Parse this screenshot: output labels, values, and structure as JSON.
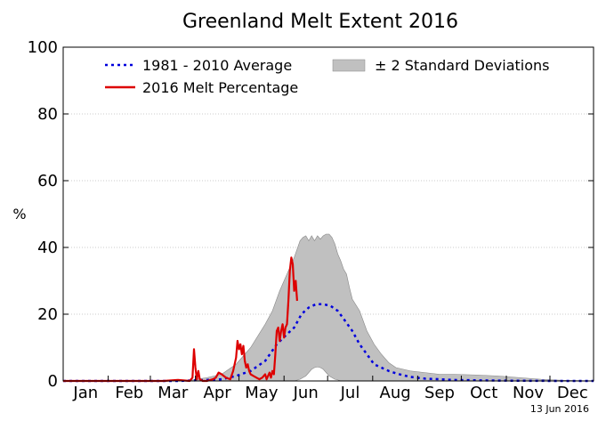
{
  "chart_data": {
    "type": "line",
    "title": "Greenland Melt Extent 2016",
    "ylabel": "%",
    "xlabel": "",
    "ylim": [
      0,
      100
    ],
    "xlim_days": [
      1,
      366
    ],
    "y_ticks": [
      0,
      20,
      40,
      60,
      80,
      100
    ],
    "y_tick_labels": [
      "0",
      "20",
      "40",
      "60",
      "80",
      "100"
    ],
    "month_labels": [
      "Jan",
      "Feb",
      "Mar",
      "Apr",
      "May",
      "Jun",
      "Jul",
      "Aug",
      "Sep",
      "Oct",
      "Nov",
      "Dec"
    ],
    "grid": "horizontal-dotted",
    "legend_placement": "top",
    "date_stamp": "13 Jun 2016",
    "legend": {
      "average_label": "1981 - 2010 Average",
      "current_label": "2016 Melt Percentage",
      "band_label": "± 2 Standard Deviations"
    },
    "colors": {
      "average": "#0000dd",
      "current": "#dd0000",
      "band": "#c0c0c0",
      "band_stroke": "#888888"
    },
    "series": [
      {
        "name": "1981 - 2010 Average",
        "style": "dotted",
        "x": [
          1,
          80,
          100,
          110,
          120,
          130,
          140,
          148,
          155,
          160,
          165,
          170,
          175,
          180,
          185,
          190,
          195,
          200,
          205,
          210,
          215,
          220,
          225,
          230,
          235,
          240,
          250,
          260,
          270,
          285,
          300,
          320,
          340,
          366
        ],
        "y": [
          0,
          0,
          0.3,
          0.5,
          1.5,
          3,
          6,
          11,
          14,
          16,
          20,
          22,
          23,
          23,
          22.5,
          21,
          18,
          15,
          11,
          8,
          5,
          4,
          3,
          2.3,
          1.7,
          1.2,
          0.7,
          0.5,
          0.3,
          0.2,
          0.1,
          0.05,
          0,
          0
        ]
      },
      {
        "name": "2016 Melt Percentage",
        "style": "solid",
        "x": [
          1,
          70,
          80,
          88,
          90,
          91,
          92,
          93,
          94,
          95,
          97,
          100,
          104,
          106,
          108,
          110,
          113,
          116,
          118,
          120,
          121,
          122,
          123,
          124,
          125,
          126,
          127,
          128,
          129,
          130,
          132,
          134,
          136,
          138,
          140,
          141,
          142,
          143,
          144,
          145,
          146,
          147,
          148,
          149,
          150,
          151,
          152,
          153,
          154,
          155,
          156,
          157,
          158,
          159,
          160,
          161,
          162
        ],
        "y": [
          0,
          0,
          0.3,
          0,
          1,
          9.5,
          4,
          0.5,
          3,
          0.5,
          0,
          0,
          0.5,
          1,
          2.5,
          2,
          1,
          0.5,
          3,
          7,
          12,
          9.5,
          11,
          8,
          10.5,
          6,
          4,
          5,
          3,
          2,
          1.5,
          1,
          0.5,
          1,
          2,
          0.5,
          1.5,
          2.5,
          1,
          3,
          2,
          8,
          15,
          16,
          12,
          15,
          17,
          13,
          16,
          17,
          24,
          33,
          37,
          35,
          27,
          30,
          24
        ]
      }
    ],
    "band": {
      "name": "± 2 Standard Deviations",
      "x": [
        85,
        100,
        110,
        120,
        130,
        140,
        145,
        150,
        155,
        160,
        164,
        166,
        168,
        170,
        172,
        174,
        176,
        178,
        180,
        182,
        184,
        186,
        188,
        190,
        192,
        194,
        196,
        198,
        200,
        205,
        210,
        215,
        220,
        225,
        230,
        235,
        240,
        250,
        260,
        270,
        285,
        300,
        315,
        330,
        345,
        366
      ],
      "upper": [
        0,
        1,
        2,
        5,
        10,
        17,
        21,
        27,
        32,
        37,
        42,
        43,
        43.5,
        42,
        43.5,
        42,
        43.5,
        42.5,
        43.5,
        44,
        44,
        43,
        41,
        38,
        36,
        33.5,
        32,
        28,
        24.5,
        21,
        15,
        11,
        8,
        5.5,
        4,
        3.5,
        3,
        2.5,
        2,
        2,
        1.8,
        1.5,
        1,
        0.5,
        0.2,
        0
      ],
      "lower": [
        0,
        0,
        0,
        0,
        0,
        0,
        0,
        0,
        0,
        0,
        0.5,
        1,
        1.5,
        2.5,
        3.5,
        4,
        4.2,
        4,
        3.5,
        2.5,
        1.5,
        1,
        0.5,
        0.3,
        0,
        0,
        0,
        0,
        0,
        0,
        0,
        0,
        0,
        0,
        0,
        0,
        0,
        0,
        0,
        0,
        0,
        0,
        0,
        0,
        0,
        0
      ]
    }
  }
}
